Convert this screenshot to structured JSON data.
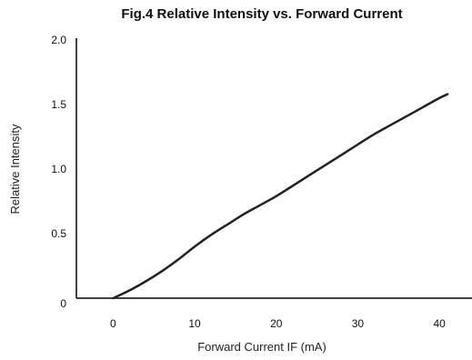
{
  "chart_data": {
    "type": "line",
    "title": "Fig.4 Relative Intensity vs. Forward Current",
    "xlabel": "Forward Current IF (mA)",
    "ylabel": "Relative Intensity",
    "xlim": [
      -4.5,
      44
    ],
    "ylim": [
      0,
      2.0
    ],
    "x_ticks": [
      0,
      10,
      20,
      30,
      40
    ],
    "x_tick_labels": [
      "0",
      "10",
      "20",
      "30",
      "40"
    ],
    "y_ticks": [
      0,
      0.5,
      1.0,
      1.5,
      2.0
    ],
    "y_tick_labels": [
      "0",
      "0.5",
      "1.0",
      "1.5",
      "2.0"
    ],
    "grid": false,
    "series": [
      {
        "color": "#222222",
        "x": [
          0,
          2,
          4,
          6,
          8,
          10,
          12,
          14,
          16,
          18,
          20,
          22,
          24,
          26,
          28,
          30,
          32,
          34,
          36,
          38,
          40,
          41
        ],
        "y": [
          0,
          0.06,
          0.13,
          0.21,
          0.3,
          0.4,
          0.49,
          0.57,
          0.65,
          0.72,
          0.79,
          0.87,
          0.95,
          1.03,
          1.11,
          1.19,
          1.27,
          1.34,
          1.41,
          1.48,
          1.55,
          1.58
        ]
      }
    ]
  }
}
